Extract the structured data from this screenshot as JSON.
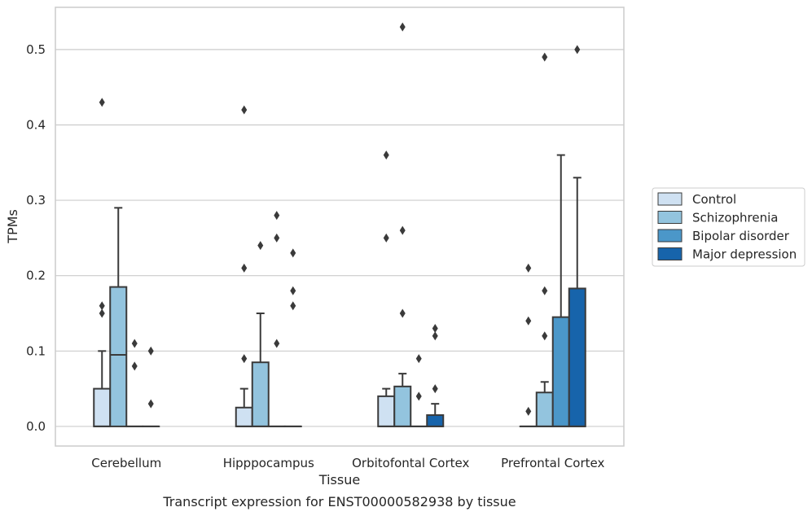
{
  "chart_data": {
    "type": "box",
    "xlabel": "Tissue",
    "ylabel": "TPMs",
    "caption": "Transcript expression for ENST00000582938 by tissue",
    "ylim": [
      -0.026,
      0.556
    ],
    "yticks": [
      "0.0",
      "0.1",
      "0.2",
      "0.3",
      "0.4",
      "0.5"
    ],
    "grid": "horizontal",
    "legend_position": "right",
    "categories": [
      "Cerebellum",
      "Hipppocampus",
      "Orbitofontal Cortex",
      "Prefrontal Cortex"
    ],
    "series": [
      {
        "name": "Control",
        "color": "#cfe1f2",
        "boxes": [
          {
            "q1": 0,
            "median": 0,
            "q3": 0.05,
            "whisker_low": 0,
            "whisker_high": 0.1,
            "outliers": [
              0.16,
              0.15,
              0.43
            ]
          },
          {
            "q1": 0,
            "median": 0,
            "q3": 0.025,
            "whisker_low": 0,
            "whisker_high": 0.05,
            "outliers": [
              0.09,
              0.21,
              0.42
            ]
          },
          {
            "q1": 0,
            "median": 0,
            "q3": 0.04,
            "whisker_low": 0,
            "whisker_high": 0.05,
            "outliers": [
              0.25,
              0.36
            ]
          },
          {
            "q1": 0,
            "median": 0,
            "q3": 0,
            "whisker_low": 0,
            "whisker_high": 0,
            "outliers": [
              0.02,
              0.14,
              0.21
            ]
          }
        ]
      },
      {
        "name": "Schizophrenia",
        "color": "#93c4de",
        "boxes": [
          {
            "q1": 0,
            "median": 0.095,
            "q3": 0.185,
            "whisker_low": 0,
            "whisker_high": 0.29,
            "outliers": []
          },
          {
            "q1": 0,
            "median": 0,
            "q3": 0.085,
            "whisker_low": 0,
            "whisker_high": 0.15,
            "outliers": [
              0.24
            ]
          },
          {
            "q1": 0,
            "median": 0,
            "q3": 0.053,
            "whisker_low": 0,
            "whisker_high": 0.07,
            "outliers": [
              0.15,
              0.26,
              0.53
            ]
          },
          {
            "q1": 0,
            "median": 0,
            "q3": 0.045,
            "whisker_low": 0,
            "whisker_high": 0.059,
            "outliers": [
              0.12,
              0.18,
              0.49
            ]
          }
        ]
      },
      {
        "name": "Bipolar disorder",
        "color": "#4b97c9",
        "boxes": [
          {
            "q1": 0,
            "median": 0,
            "q3": 0,
            "whisker_low": 0,
            "whisker_high": 0,
            "outliers": [
              0.08,
              0.11
            ]
          },
          {
            "q1": 0,
            "median": 0,
            "q3": 0,
            "whisker_low": 0,
            "whisker_high": 0,
            "outliers": [
              0.11,
              0.25,
              0.28
            ]
          },
          {
            "q1": 0,
            "median": 0,
            "q3": 0,
            "whisker_low": 0,
            "whisker_high": 0,
            "outliers": [
              0.04,
              0.09
            ]
          },
          {
            "q1": 0,
            "median": 0,
            "q3": 0.145,
            "whisker_low": 0,
            "whisker_high": 0.36,
            "outliers": []
          }
        ]
      },
      {
        "name": "Major depression",
        "color": "#1764ab",
        "boxes": [
          {
            "q1": 0,
            "median": 0,
            "q3": 0,
            "whisker_low": 0,
            "whisker_high": 0,
            "outliers": [
              0.03,
              0.1
            ]
          },
          {
            "q1": 0,
            "median": 0,
            "q3": 0,
            "whisker_low": 0,
            "whisker_high": 0,
            "outliers": [
              0.16,
              0.18,
              0.23
            ]
          },
          {
            "q1": 0,
            "median": 0,
            "q3": 0.015,
            "whisker_low": 0,
            "whisker_high": 0.03,
            "outliers": [
              0.05,
              0.12,
              0.13
            ]
          },
          {
            "q1": 0,
            "median": 0,
            "q3": 0.183,
            "whisker_low": 0,
            "whisker_high": 0.33,
            "outliers": [
              0.5
            ]
          }
        ]
      }
    ]
  }
}
